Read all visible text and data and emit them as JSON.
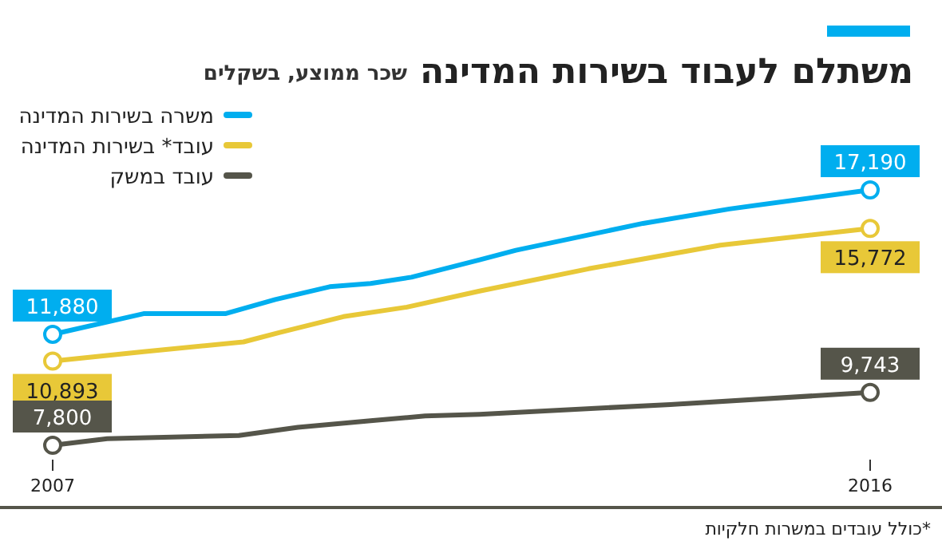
{
  "chart_data": {
    "type": "line",
    "title": "משתלם לעבוד בשירות המדינה",
    "subtitle": "שכר ממוצע, בשקלים",
    "series": [
      {
        "name": "משרה בשירות המדינה",
        "color": "#00aeef",
        "x": [
          2007,
          2008,
          2008.9,
          2009.45,
          2010.05,
          2010.5,
          2010.95,
          2011.7,
          2012.1,
          2013.5,
          2014.45,
          2016
        ],
        "values": [
          11880,
          12640,
          12640,
          13160,
          13630,
          13750,
          13980,
          14620,
          14970,
          15960,
          16490,
          17190
        ],
        "value_labels": [
          "11,880",
          null,
          null,
          null,
          null,
          null,
          null,
          null,
          null,
          null,
          null,
          "17,190"
        ]
      },
      {
        "name": "עובד* בשירות המדינה",
        "color": "#e8c838",
        "x": [
          2007,
          2008,
          2009.1,
          2009.5,
          2010.2,
          2010.9,
          2011.7,
          2012.9,
          2014.35,
          2016
        ],
        "values": [
          10893,
          11240,
          11600,
          11950,
          12530,
          12880,
          13470,
          14290,
          15160,
          15772
        ],
        "value_labels": [
          "10,893",
          null,
          null,
          null,
          null,
          null,
          null,
          null,
          null,
          "15,772"
        ]
      },
      {
        "name": "עובד במשק",
        "color": "#55554a",
        "x": [
          2007,
          2007.6,
          2009.05,
          2009.7,
          2010.5,
          2011.1,
          2011.7,
          2013.8,
          2016
        ],
        "values": [
          7800,
          8040,
          8160,
          8460,
          8700,
          8880,
          8940,
          9300,
          9743
        ],
        "value_labels": [
          "7,800",
          null,
          null,
          null,
          null,
          null,
          null,
          null,
          "9,743"
        ]
      }
    ],
    "xlim": [
      2007,
      2016
    ],
    "xticks": [
      2007,
      2016
    ],
    "tick_labels": "x",
    "legend": "top left",
    "annotations": [
      "*כולל עובדים במשרות חלקיות"
    ]
  }
}
